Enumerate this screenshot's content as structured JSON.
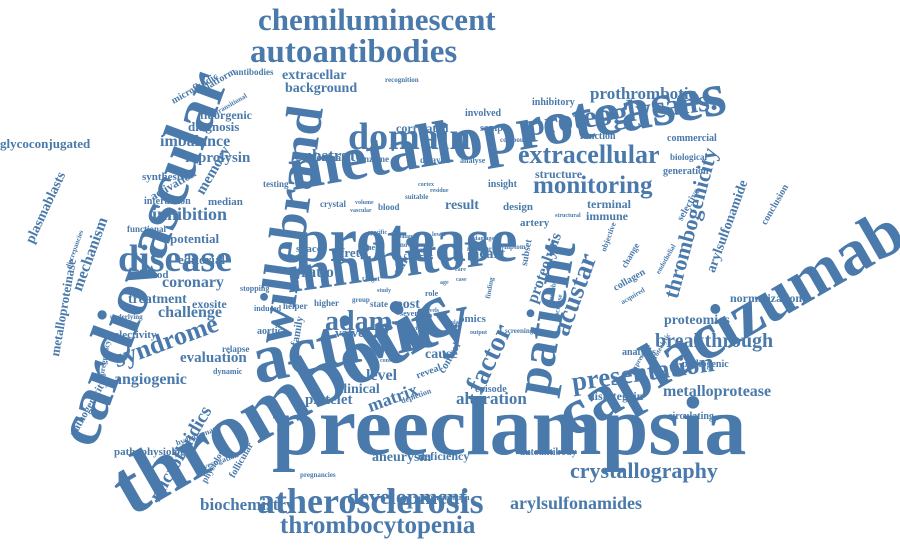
{
  "word_cloud": {
    "color": "#4a7aab",
    "background": "#ffffff",
    "words": [
      "preeclampsia",
      "thrombotic",
      "metalloproteases",
      "activity",
      "cardiovascular",
      "caplacizumab",
      "protease",
      "inhibitor",
      "willebrand",
      "patient",
      "atherosclerosis",
      "chemiluminescent",
      "autoantibodies",
      "proteoglycans.",
      "domain",
      "disease",
      "thrombocytopenia",
      "extracellular",
      "thrombogenicity",
      "crystallography",
      "presentation",
      "breakthrough",
      "monitoring",
      "factor",
      "development",
      "syndrome",
      "acustar",
      "adam",
      "metalloprotease",
      "arylsulfonamides",
      "microfluidics",
      "biochemistry",
      "prothrombotic",
      "alteration",
      "matrix",
      "aneurysm",
      "proteolysis",
      "proteomics",
      "arylsulfonamide",
      "inhibition",
      "evaluation",
      "angiogenic",
      "coronary",
      "substrate",
      "reprolysin",
      "imbalance",
      "diagnosis",
      "memory",
      "plasmablasts",
      "mechanism",
      "metalloproteinase",
      "glycoconjugated",
      "challenge",
      "treatment",
      "exosite",
      "editorial",
      "selectivity",
      "level",
      "ratio",
      "platelet",
      "clinical",
      "cause",
      "deficiency",
      "disintegrin",
      "normalization",
      "correlated",
      "extracellar",
      "background",
      "fluorgenic",
      "potential",
      "activation",
      "synthesis",
      "result",
      "heart",
      "cell",
      "normal",
      "enzyme",
      "valve",
      "pathogenicity",
      "pathophysiology",
      "microfluidic",
      "platform",
      "antibodies",
      "involved",
      "sample",
      "inhibitory",
      "structure",
      "terminal",
      "immune",
      "design",
      "artery",
      "function",
      "commercial",
      "biological",
      "generation",
      "pathogenic",
      "circulating",
      "autoantibody",
      "analysis",
      "conclusion",
      "selective",
      "median",
      "interaction",
      "functional",
      "method",
      "testing",
      "crystal",
      "blood",
      "fret",
      "spacer",
      "omics",
      "episode",
      "control",
      "subset",
      "collagen",
      "post",
      "zinc",
      "family",
      "aortic",
      "helper",
      "higher",
      "induced",
      "stopping",
      "relapse",
      "dynamic",
      "pregnancy",
      "follicular",
      "physiology",
      "hydroxamate",
      "investigation",
      "pregnancies",
      "normalisation",
      "reveal",
      "depletion",
      "insight",
      "delayed",
      "analyse",
      "compound",
      "expression",
      "proteolytic",
      "recognition",
      "transitional",
      "discrepancies",
      "underlying",
      "screening",
      "member",
      "symptom",
      "time",
      "state",
      "severe",
      "change",
      "objective",
      "acquired",
      "endothelial",
      "increase",
      "number",
      "finding",
      "constant",
      "novel",
      "role",
      "suitable",
      "residue",
      "volume",
      "vascular",
      "target",
      "group",
      "study",
      "levels",
      "evidence",
      "damage",
      "rare",
      "output",
      "structural",
      "dose",
      "cellular",
      "specific",
      "balance",
      "lower",
      "age",
      "case",
      "effect",
      "ischemic",
      "cortex"
    ]
  }
}
